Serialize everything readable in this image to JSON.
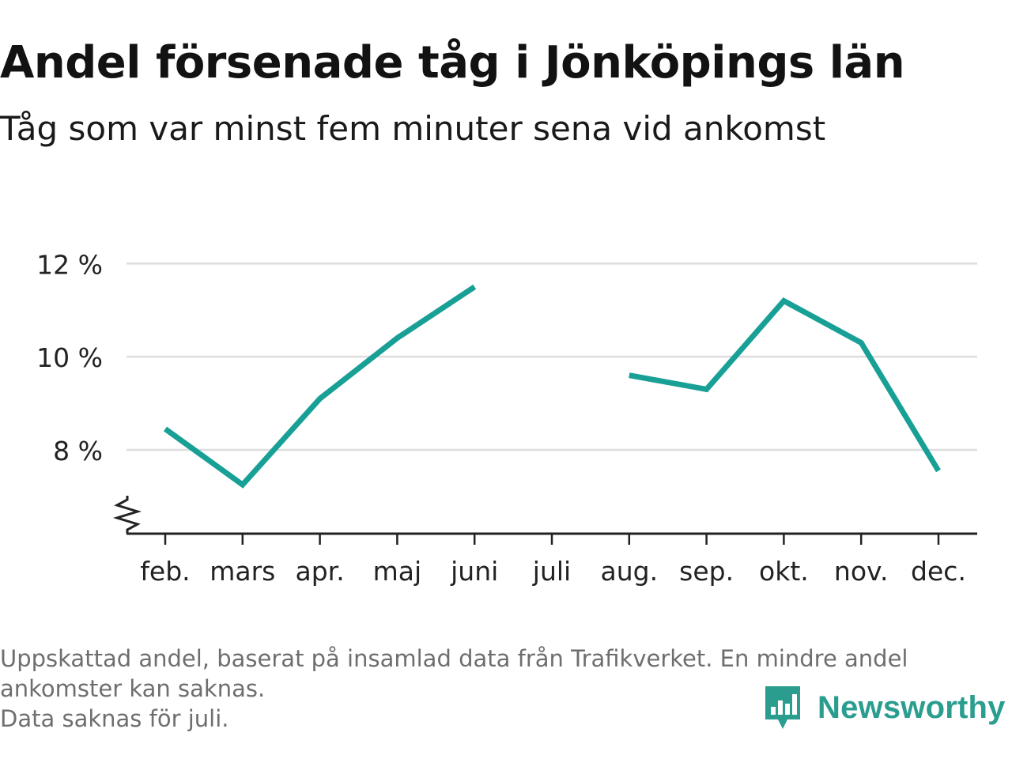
{
  "header": {
    "title": "Andel försenade tåg i Jönköpings län",
    "subtitle": "Tåg som var minst fem minuter sena vid ankomst"
  },
  "chart_data": {
    "type": "line",
    "title": "Andel försenade tåg i Jönköpings län",
    "subtitle": "Tåg som var minst fem minuter sena vid ankomst",
    "categories": [
      "feb.",
      "mars",
      "apr.",
      "maj",
      "juni",
      "juli",
      "aug.",
      "sep.",
      "okt.",
      "nov.",
      "dec."
    ],
    "series": [
      {
        "values": [
          8.45,
          7.25,
          9.1,
          10.4,
          11.5,
          null,
          9.6,
          9.3,
          11.2,
          10.3,
          7.55
        ],
        "color": "#18a096"
      }
    ],
    "yticks": [
      8,
      10,
      12
    ],
    "ytick_labels": [
      "8 %",
      "10 %",
      "12 %"
    ],
    "ylim": [
      6.2,
      12.6
    ],
    "axis_break": true,
    "grid": true,
    "xlabel": "",
    "ylabel": ""
  },
  "footer": {
    "note_line1": "Uppskattad andel, baserat på insamlad data från Trafikverket. En mindre andel",
    "note_line2": "ankomster kan saknas.",
    "note_line3": "Data saknas för juli.",
    "brand": "Newsworthy"
  },
  "colors": {
    "line": "#18a096",
    "grid": "#dddddd",
    "axis": "#222222",
    "brand": "#2a9d8f"
  }
}
